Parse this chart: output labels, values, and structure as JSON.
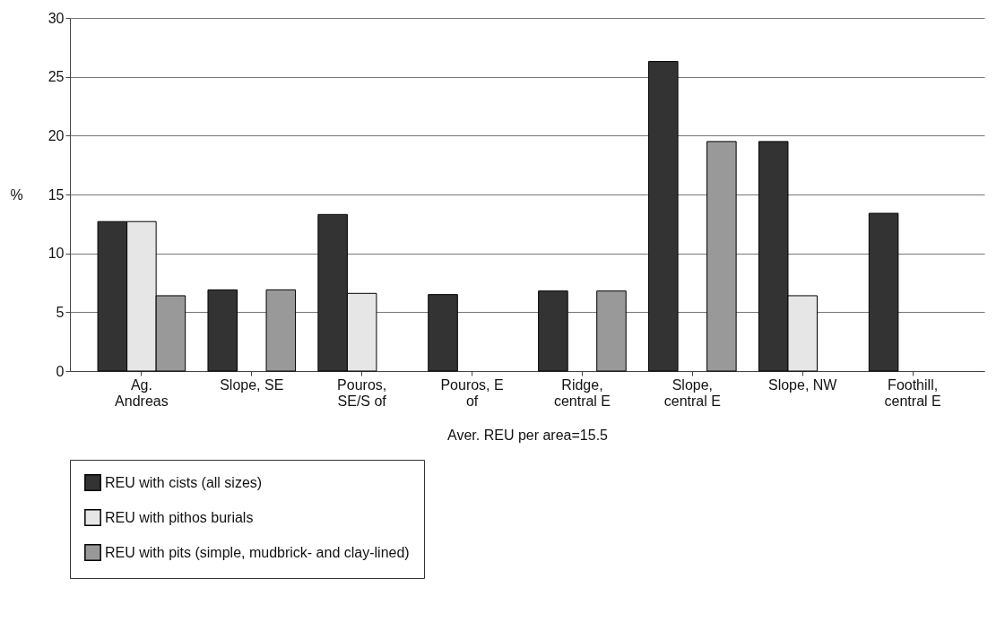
{
  "chart_data": {
    "type": "bar",
    "xlabel": "Aver. REU per area=15.5",
    "ylabel": "%",
    "categories": [
      "Ag.\nAndreas",
      "Slope, SE",
      "Pouros,\nSE/S of",
      "Pouros, E\nof",
      "Ridge,\ncentral E",
      "Slope,\ncentral E",
      "Slope, NW",
      "Foothill,\ncentral E"
    ],
    "series": [
      {
        "name": "REU with cists (all sizes)",
        "color": "#333333",
        "values": [
          12.7,
          6.9,
          13.3,
          6.5,
          6.8,
          26.3,
          19.5,
          13.4
        ]
      },
      {
        "name": "REU with pithos burials",
        "color": "#e6e6e6",
        "values": [
          12.7,
          null,
          6.6,
          null,
          null,
          null,
          6.4,
          null
        ]
      },
      {
        "name": "REU with pits (simple, mudbrick- and clay-lined)",
        "color": "#999999",
        "values": [
          6.4,
          6.9,
          null,
          null,
          6.8,
          19.5,
          null,
          null
        ]
      }
    ],
    "ylim": [
      0,
      30
    ],
    "yticks": [
      0,
      5,
      10,
      15,
      20,
      25,
      30
    ],
    "grid": "y",
    "legend": "bottom"
  }
}
